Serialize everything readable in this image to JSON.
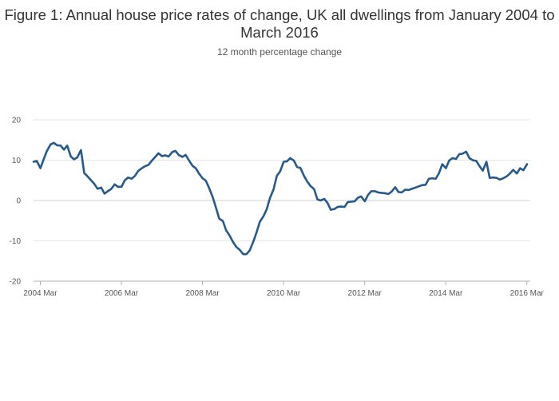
{
  "chart_data": {
    "type": "line",
    "title": "Figure 1: Annual house price rates of change, UK all dwellings from January 2004 to March 2016",
    "subtitle": "12 month percentage change",
    "xlabel": "",
    "ylabel": "",
    "x_ticks": [
      "2004 Mar",
      "2006 Mar",
      "2008 Mar",
      "2010 Mar",
      "2012 Mar",
      "2014 Mar",
      "2016 Mar"
    ],
    "x_range": [
      2004.0,
      2016.25
    ],
    "ylim": [
      -20,
      20
    ],
    "y_ticks": [
      -20,
      -10,
      0,
      10,
      20
    ],
    "grid": true,
    "legend": "none",
    "colors": {
      "line": "#26598C",
      "grid": "#E6E6E6",
      "axis": "#B0B0B0"
    },
    "series": [
      {
        "values": [
          [
            2004.0,
            9.6
          ],
          [
            2004.08,
            9.8
          ],
          [
            2004.17,
            8.0
          ],
          [
            2004.25,
            10.2
          ],
          [
            2004.33,
            12.3
          ],
          [
            2004.42,
            13.9
          ],
          [
            2004.5,
            14.3
          ],
          [
            2004.58,
            13.7
          ],
          [
            2004.67,
            13.6
          ],
          [
            2004.75,
            12.6
          ],
          [
            2004.83,
            13.6
          ],
          [
            2004.92,
            10.9
          ],
          [
            2005.0,
            10.2
          ],
          [
            2005.08,
            10.7
          ],
          [
            2005.17,
            12.5
          ],
          [
            2005.25,
            6.8
          ],
          [
            2005.33,
            6.0
          ],
          [
            2005.42,
            5.0
          ],
          [
            2005.5,
            4.1
          ],
          [
            2005.58,
            2.9
          ],
          [
            2005.67,
            3.2
          ],
          [
            2005.75,
            1.7
          ],
          [
            2005.83,
            2.3
          ],
          [
            2005.92,
            2.9
          ],
          [
            2006.0,
            4.0
          ],
          [
            2006.08,
            3.4
          ],
          [
            2006.17,
            3.4
          ],
          [
            2006.25,
            5.0
          ],
          [
            2006.33,
            5.7
          ],
          [
            2006.42,
            5.4
          ],
          [
            2006.5,
            6.1
          ],
          [
            2006.58,
            7.3
          ],
          [
            2006.67,
            8.0
          ],
          [
            2006.75,
            8.5
          ],
          [
            2006.83,
            8.8
          ],
          [
            2006.92,
            9.9
          ],
          [
            2007.0,
            10.8
          ],
          [
            2007.08,
            11.7
          ],
          [
            2007.17,
            11.0
          ],
          [
            2007.25,
            11.2
          ],
          [
            2007.33,
            10.9
          ],
          [
            2007.42,
            12.0
          ],
          [
            2007.5,
            12.3
          ],
          [
            2007.58,
            11.3
          ],
          [
            2007.67,
            10.8
          ],
          [
            2007.75,
            11.3
          ],
          [
            2007.83,
            10.0
          ],
          [
            2007.92,
            8.6
          ],
          [
            2008.0,
            8.0
          ],
          [
            2008.08,
            6.7
          ],
          [
            2008.17,
            5.5
          ],
          [
            2008.25,
            4.9
          ],
          [
            2008.33,
            3.1
          ],
          [
            2008.42,
            0.8
          ],
          [
            2008.5,
            -1.8
          ],
          [
            2008.58,
            -4.5
          ],
          [
            2008.67,
            -5.1
          ],
          [
            2008.75,
            -7.4
          ],
          [
            2008.83,
            -8.6
          ],
          [
            2008.92,
            -10.3
          ],
          [
            2009.0,
            -11.5
          ],
          [
            2009.08,
            -12.2
          ],
          [
            2009.17,
            -13.3
          ],
          [
            2009.25,
            -13.3
          ],
          [
            2009.33,
            -12.4
          ],
          [
            2009.42,
            -10.2
          ],
          [
            2009.5,
            -7.9
          ],
          [
            2009.58,
            -5.3
          ],
          [
            2009.67,
            -3.9
          ],
          [
            2009.75,
            -2.2
          ],
          [
            2009.83,
            0.6
          ],
          [
            2009.92,
            2.8
          ],
          [
            2010.0,
            6.1
          ],
          [
            2010.08,
            7.2
          ],
          [
            2010.17,
            9.6
          ],
          [
            2010.25,
            9.7
          ],
          [
            2010.33,
            10.5
          ],
          [
            2010.42,
            9.9
          ],
          [
            2010.5,
            8.3
          ],
          [
            2010.58,
            8.1
          ],
          [
            2010.67,
            6.1
          ],
          [
            2010.75,
            4.7
          ],
          [
            2010.83,
            3.6
          ],
          [
            2010.92,
            2.8
          ],
          [
            2011.0,
            0.3
          ],
          [
            2011.08,
            0.0
          ],
          [
            2011.17,
            0.4
          ],
          [
            2011.25,
            -0.6
          ],
          [
            2011.33,
            -2.3
          ],
          [
            2011.42,
            -2.1
          ],
          [
            2011.5,
            -1.6
          ],
          [
            2011.58,
            -1.5
          ],
          [
            2011.67,
            -1.6
          ],
          [
            2011.75,
            -0.4
          ],
          [
            2011.83,
            -0.3
          ],
          [
            2011.92,
            -0.2
          ],
          [
            2012.0,
            0.7
          ],
          [
            2012.08,
            1.0
          ],
          [
            2012.17,
            -0.2
          ],
          [
            2012.25,
            1.4
          ],
          [
            2012.33,
            2.3
          ],
          [
            2012.42,
            2.3
          ],
          [
            2012.5,
            2.0
          ],
          [
            2012.58,
            1.9
          ],
          [
            2012.67,
            1.8
          ],
          [
            2012.75,
            1.6
          ],
          [
            2012.83,
            2.2
          ],
          [
            2012.92,
            3.3
          ],
          [
            2013.0,
            2.1
          ],
          [
            2013.08,
            2.0
          ],
          [
            2013.17,
            2.7
          ],
          [
            2013.25,
            2.6
          ],
          [
            2013.33,
            2.9
          ],
          [
            2013.42,
            3.2
          ],
          [
            2013.5,
            3.5
          ],
          [
            2013.58,
            3.8
          ],
          [
            2013.67,
            3.9
          ],
          [
            2013.75,
            5.4
          ],
          [
            2013.83,
            5.5
          ],
          [
            2013.92,
            5.4
          ],
          [
            2014.0,
            6.8
          ],
          [
            2014.08,
            9.0
          ],
          [
            2014.17,
            8.0
          ],
          [
            2014.25,
            9.9
          ],
          [
            2014.33,
            10.5
          ],
          [
            2014.42,
            10.3
          ],
          [
            2014.5,
            11.5
          ],
          [
            2014.58,
            11.6
          ],
          [
            2014.67,
            12.1
          ],
          [
            2014.75,
            10.5
          ],
          [
            2014.83,
            10.0
          ],
          [
            2014.92,
            9.8
          ],
          [
            2015.0,
            8.5
          ],
          [
            2015.08,
            7.4
          ],
          [
            2015.17,
            9.6
          ],
          [
            2015.25,
            5.6
          ],
          [
            2015.33,
            5.7
          ],
          [
            2015.42,
            5.6
          ],
          [
            2015.5,
            5.2
          ],
          [
            2015.58,
            5.5
          ],
          [
            2015.67,
            6.0
          ],
          [
            2015.75,
            6.7
          ],
          [
            2015.83,
            7.6
          ],
          [
            2015.92,
            6.7
          ],
          [
            2016.0,
            8.0
          ],
          [
            2016.08,
            7.5
          ],
          [
            2016.17,
            9.0
          ]
        ]
      }
    ]
  }
}
